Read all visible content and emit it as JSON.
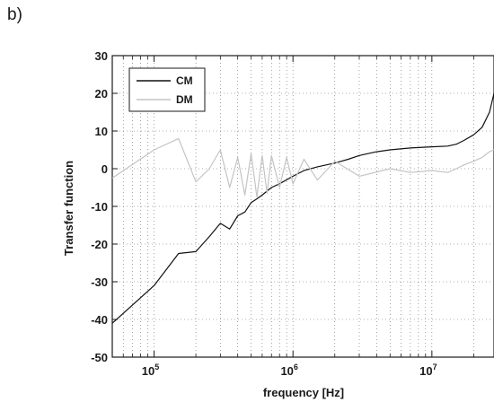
{
  "panel_label": "b)",
  "chart_data": {
    "type": "line",
    "title": "",
    "xlabel": "frequency [Hz]",
    "ylabel": "Transfer function",
    "x_scale": "log",
    "xlim": [
      50000,
      28000000
    ],
    "ylim": [
      -50,
      30
    ],
    "x_ticks": [
      {
        "value": 100000,
        "base": "10",
        "exp": "5"
      },
      {
        "value": 1000000,
        "base": "10",
        "exp": "6"
      },
      {
        "value": 10000000,
        "base": "10",
        "exp": "7"
      }
    ],
    "y_ticks": [
      30,
      20,
      10,
      0,
      -10,
      -20,
      -30,
      -40,
      -50
    ],
    "grid": true,
    "legend_position": "top-left",
    "series": [
      {
        "name": "CM",
        "color": "#111111",
        "x": [
          50000,
          100000,
          150000,
          200000,
          250000,
          300000,
          350000,
          400000,
          450000,
          500000,
          550000,
          600000,
          700000,
          800000,
          1000000,
          1200000,
          1500000,
          2000000,
          2500000,
          3000000,
          4000000,
          5000000,
          7000000,
          10000000,
          13000000,
          15000000,
          17000000,
          20000000,
          23000000,
          26000000,
          28000000
        ],
        "y": [
          -41,
          -31,
          -22.5,
          -22,
          -18,
          -14.5,
          -16,
          -12.5,
          -11.5,
          -9,
          -8,
          -7,
          -5,
          -4,
          -2,
          -0.5,
          0.5,
          1.5,
          2.5,
          3.5,
          4.5,
          5,
          5.5,
          5.8,
          6,
          6.5,
          7.5,
          9,
          11,
          15,
          20
        ]
      },
      {
        "name": "DM",
        "color": "#c4c4c4",
        "x": [
          50000,
          100000,
          150000,
          200000,
          250000,
          300000,
          350000,
          400000,
          450000,
          500000,
          550000,
          600000,
          650000,
          700000,
          800000,
          900000,
          1000000,
          1200000,
          1500000,
          2000000,
          3000000,
          5000000,
          7000000,
          10000000,
          13000000,
          15000000,
          17000000,
          20000000,
          23000000,
          26000000,
          28000000
        ],
        "y": [
          -2.5,
          5,
          8,
          -3.5,
          0,
          5,
          -5,
          3,
          -7,
          4,
          -7.5,
          3.5,
          -6.5,
          3.5,
          -5,
          3,
          -4,
          2.5,
          -3,
          2,
          -2,
          0,
          -1,
          -0.5,
          -1,
          0,
          1,
          2,
          3,
          4.5,
          5
        ]
      }
    ]
  }
}
